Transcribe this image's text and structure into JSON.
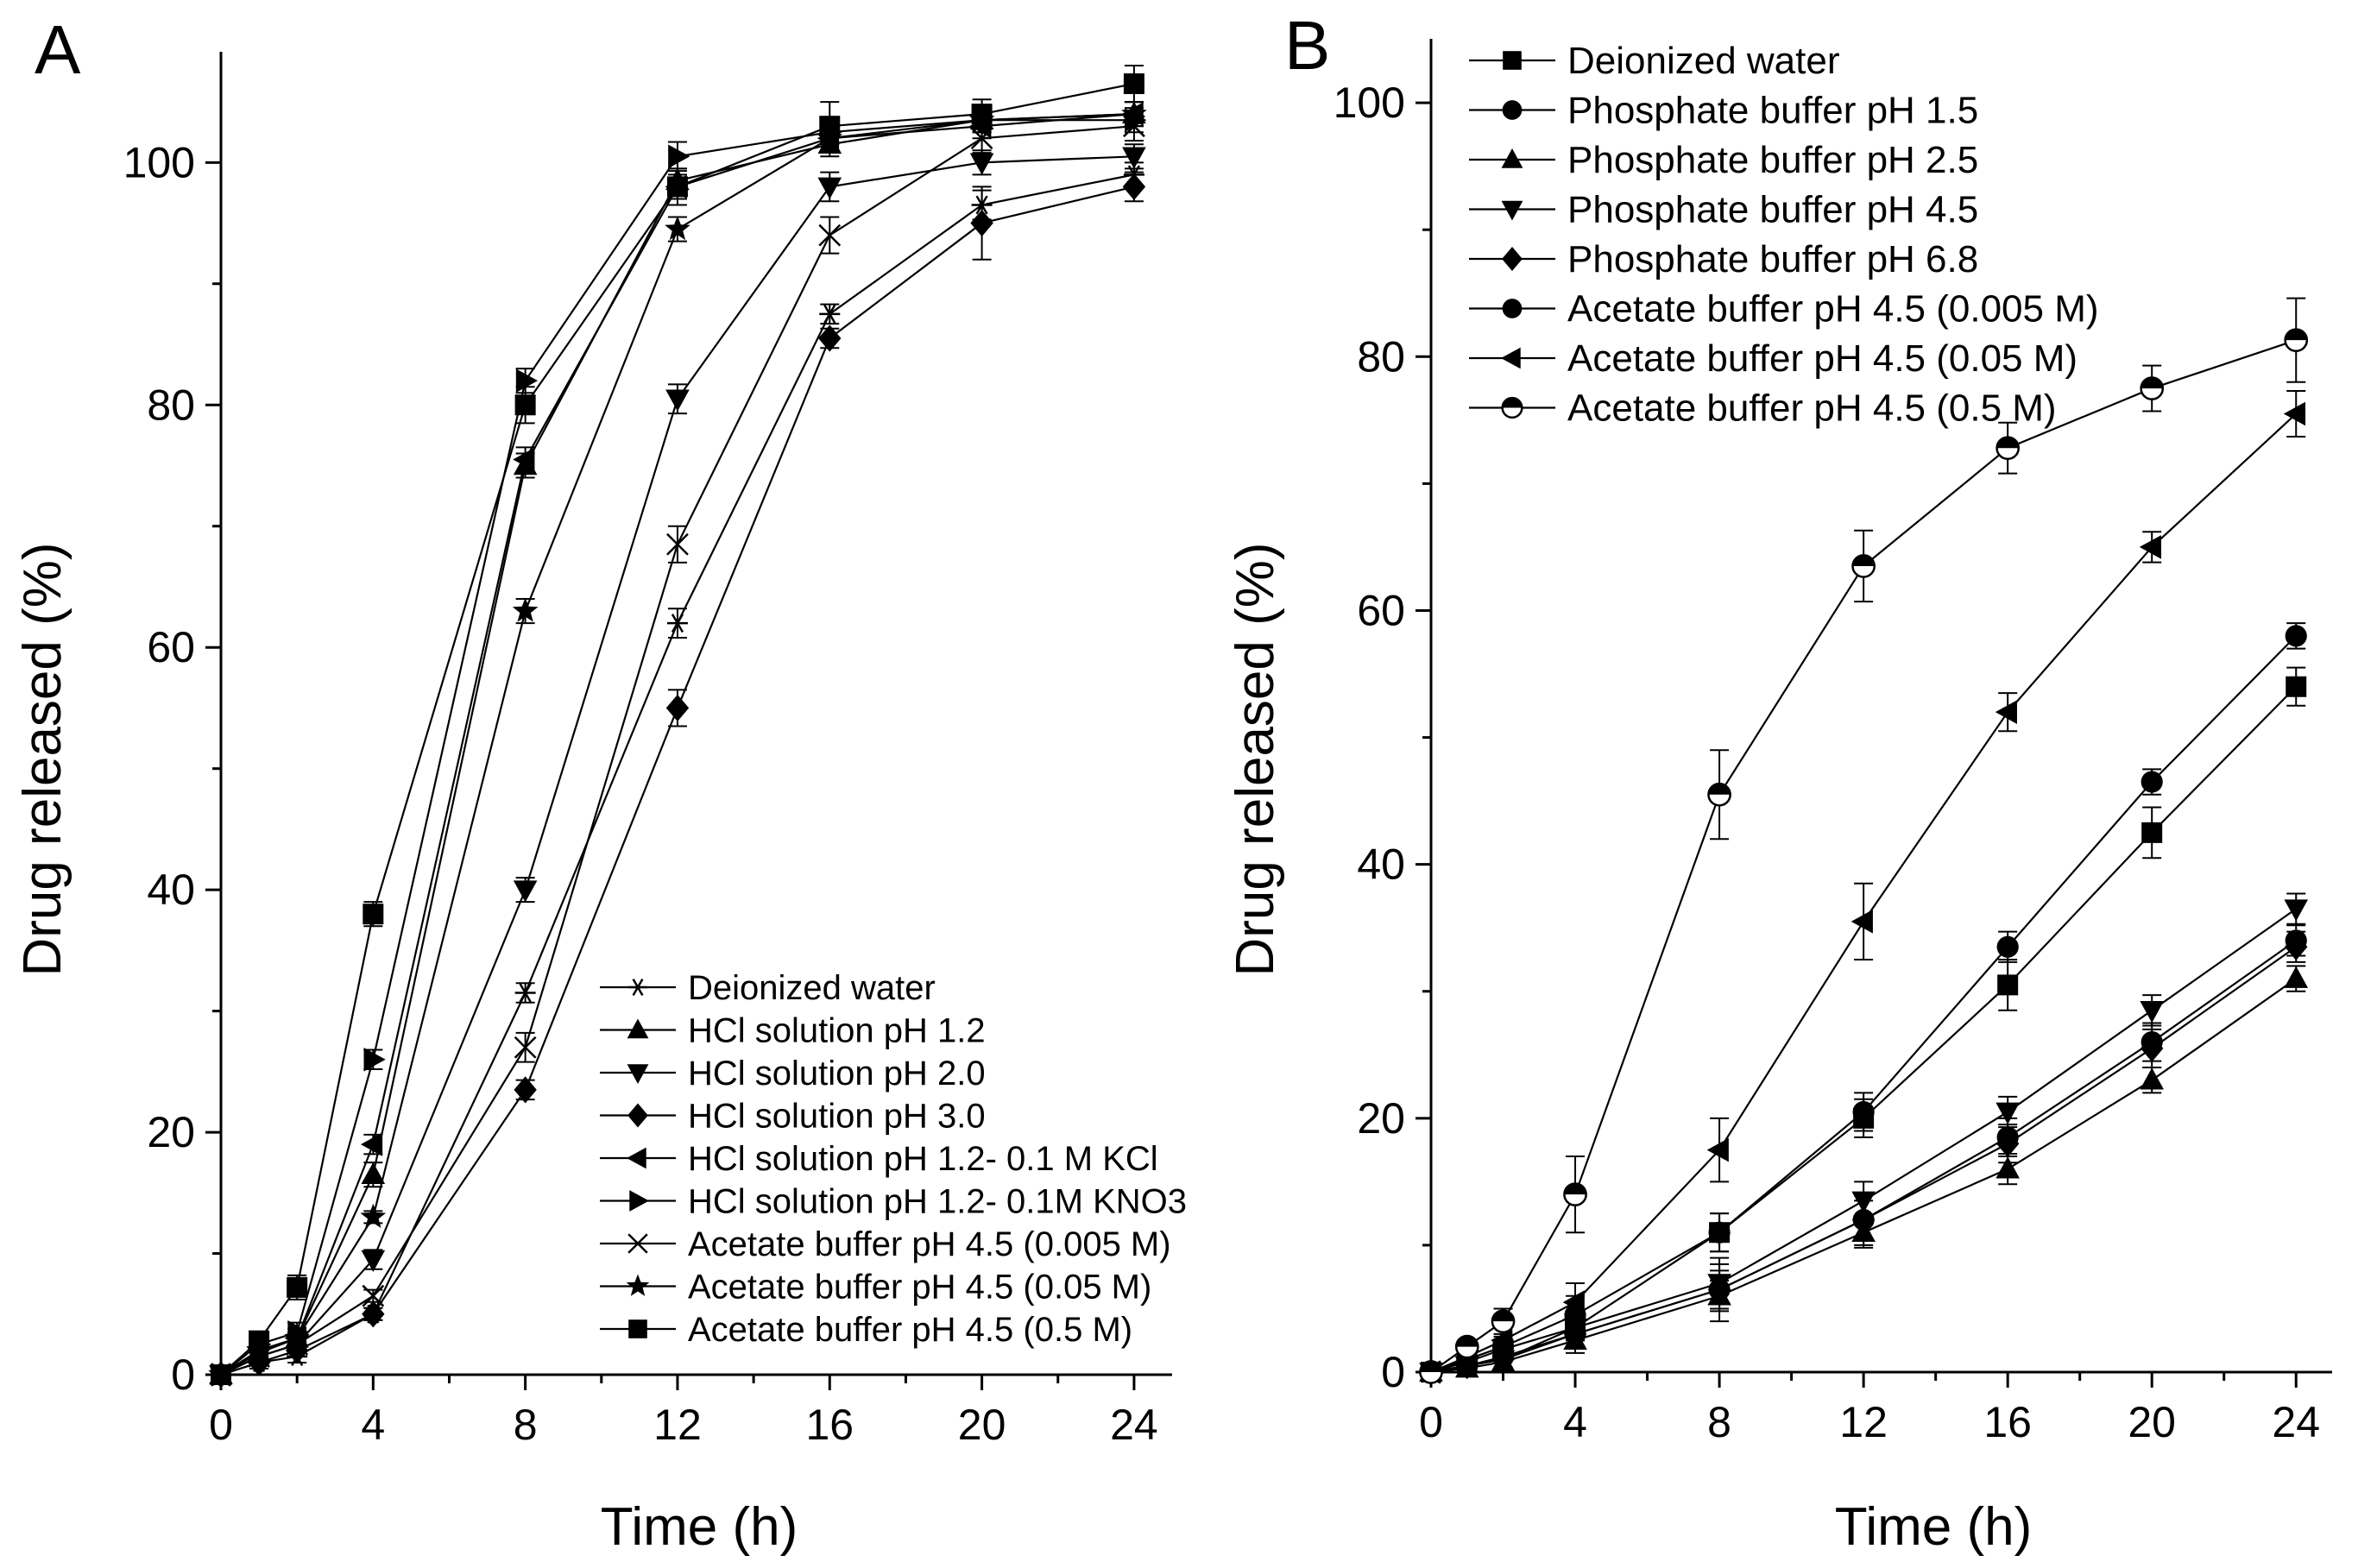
{
  "figure": {
    "panels": [
      "A",
      "B"
    ]
  },
  "chart_data": [
    {
      "id": "A",
      "type": "line",
      "panel_label": "A",
      "title": "",
      "xlabel": "Time (h)",
      "ylabel": "Drug released (%)",
      "xlim": [
        0,
        25
      ],
      "ylim": [
        0,
        107
      ],
      "xticks": [
        0,
        4,
        8,
        12,
        16,
        20,
        24
      ],
      "yticks": [
        0,
        20,
        40,
        60,
        80,
        100
      ],
      "legend_position": "bottom-right",
      "x": [
        0,
        1,
        2,
        4,
        8,
        12,
        16,
        20,
        24
      ],
      "series": [
        {
          "name": "Deionized water",
          "marker": "asterisk",
          "values": [
            0,
            1.0,
            1.5,
            5,
            31.5,
            62,
            87.5,
            96.5,
            99
          ],
          "errors": [
            0,
            0.5,
            0.5,
            0.5,
            0.8,
            1.2,
            0.8,
            1.2,
            1.0
          ]
        },
        {
          "name": "HCl solution pH 1.2",
          "marker": "triangle-up",
          "values": [
            0,
            1.8,
            3.0,
            16.5,
            75,
            98.5,
            101.5,
            103.5,
            104
          ],
          "errors": [
            0,
            0.5,
            0.8,
            1.0,
            1.0,
            1.0,
            1.0,
            1.0,
            1.0
          ]
        },
        {
          "name": "HCl solution pH 2.0",
          "marker": "triangle-down",
          "values": [
            0,
            1.5,
            2.5,
            9.5,
            40,
            80.5,
            98,
            100,
            100.5
          ],
          "errors": [
            0,
            0.5,
            0.5,
            0.8,
            1.0,
            1.2,
            1.2,
            1.0,
            1.0
          ]
        },
        {
          "name": "HCl solution pH 3.0",
          "marker": "diamond",
          "values": [
            0,
            1.0,
            2.0,
            5.0,
            23.5,
            55,
            85.5,
            95,
            98
          ],
          "errors": [
            0,
            0.5,
            0.5,
            0.5,
            0.8,
            1.5,
            0.8,
            3.0,
            1.2
          ]
        },
        {
          "name": "HCl solution pH 1.2- 0.1 M KCl",
          "marker": "triangle-left",
          "values": [
            0,
            2.0,
            3.0,
            19,
            75.5,
            98,
            102,
            103,
            104
          ],
          "errors": [
            0,
            0.5,
            0.5,
            0.8,
            1.0,
            1.0,
            1.0,
            1.0,
            1.0
          ]
        },
        {
          "name": "HCl solution pH 1.2- 0.1M KNO3",
          "marker": "triangle-right",
          "values": [
            0,
            2.5,
            3.5,
            26,
            82,
            100.5,
            102.5,
            103.5,
            103.5
          ],
          "errors": [
            0,
            0.5,
            0.8,
            0.8,
            1.0,
            1.2,
            1.0,
            1.0,
            1.0
          ]
        },
        {
          "name": "Acetate buffer pH 4.5 (0.005 M)",
          "marker": "x",
          "values": [
            0,
            1.5,
            2.5,
            6.5,
            27,
            68.5,
            94,
            102,
            103
          ],
          "errors": [
            0,
            0.5,
            0.5,
            0.5,
            1.2,
            1.5,
            1.5,
            1.2,
            1.2
          ]
        },
        {
          "name": "Acetate buffer pH 4.5 (0.05 M)",
          "marker": "star",
          "values": [
            0,
            2.0,
            3.0,
            13,
            63,
            94.5,
            102,
            103.5,
            104
          ],
          "errors": [
            0,
            0.5,
            0.5,
            0.5,
            1.0,
            1.0,
            1.0,
            1.0,
            1.0
          ]
        },
        {
          "name": "Acetate buffer pH 4.5 (0.5 M)",
          "marker": "square",
          "values": [
            0,
            2.8,
            7.2,
            38,
            80,
            98,
            103,
            104,
            106.5
          ],
          "errors": [
            0,
            0.5,
            1.0,
            1.0,
            1.5,
            1.5,
            2.0,
            1.2,
            1.5
          ]
        }
      ]
    },
    {
      "id": "B",
      "type": "line",
      "panel_label": "B",
      "title": "",
      "xlabel": "Time (h)",
      "ylabel": "Drug released (%)",
      "xlim": [
        0,
        25
      ],
      "ylim": [
        0,
        103
      ],
      "xticks": [
        0,
        4,
        8,
        12,
        16,
        20,
        24
      ],
      "yticks": [
        0,
        20,
        40,
        60,
        80,
        100
      ],
      "legend_position": "top-left",
      "x": [
        0,
        1,
        2,
        4,
        8,
        12,
        16,
        20,
        24
      ],
      "series": [
        {
          "name": "Deionized water",
          "marker": "square",
          "values": [
            0,
            0.8,
            1.8,
            3.5,
            11,
            20,
            30.5,
            42.5,
            54
          ],
          "errors": [
            0,
            0.5,
            0.8,
            1.0,
            1.5,
            1.5,
            2.0,
            2.0,
            1.5
          ]
        },
        {
          "name": "Phosphate buffer pH 1.5",
          "marker": "circle",
          "values": [
            0,
            0.5,
            1.2,
            3.0,
            6.5,
            12,
            18.5,
            26,
            34
          ],
          "errors": [
            0,
            0.5,
            0.8,
            1.0,
            1.5,
            1.5,
            1.5,
            1.5,
            1.2
          ]
        },
        {
          "name": "Phosphate buffer pH 2.5",
          "marker": "triangle-up",
          "values": [
            0,
            0.3,
            0.8,
            2.5,
            6.0,
            11,
            16,
            23,
            31
          ],
          "errors": [
            0,
            0.5,
            0.8,
            1.0,
            1.2,
            1.2,
            1.2,
            1.0,
            1.0
          ]
        },
        {
          "name": "Phosphate buffer pH 4.5",
          "marker": "triangle-down",
          "values": [
            0,
            0.5,
            1.0,
            3.5,
            7.0,
            13.5,
            20.5,
            28.5,
            36.5
          ],
          "errors": [
            0,
            0.5,
            0.8,
            1.0,
            1.5,
            1.5,
            1.2,
            1.2,
            1.2
          ]
        },
        {
          "name": "Phosphate buffer pH 6.8",
          "marker": "diamond",
          "values": [
            0,
            0.5,
            1.0,
            3.0,
            6.5,
            12,
            18,
            25.5,
            33.5
          ],
          "errors": [
            0,
            0.5,
            0.8,
            1.0,
            2.5,
            2.0,
            1.5,
            1.5,
            1.2
          ]
        },
        {
          "name": "Acetate buffer pH 4.5 (0.005 M)",
          "marker": "circle",
          "values": [
            0,
            1.0,
            2.0,
            4.5,
            11,
            20.5,
            33.5,
            46.5,
            58
          ],
          "errors": [
            0,
            0.5,
            0.8,
            1.5,
            1.5,
            1.5,
            1.2,
            1.0,
            1.0
          ]
        },
        {
          "name": "Acetate buffer pH 4.5 (0.05 M)",
          "marker": "triangle-left",
          "values": [
            0,
            1.2,
            2.5,
            5.5,
            17.5,
            35.5,
            52,
            65,
            75.5
          ],
          "errors": [
            0,
            0.5,
            1.0,
            1.5,
            2.5,
            3.0,
            1.5,
            1.2,
            1.8
          ]
        },
        {
          "name": "Acetate buffer pH 4.5 (0.5 M)",
          "marker": "half-circle",
          "values": [
            0,
            2.0,
            4.0,
            14,
            45.5,
            63.5,
            72.8,
            77.5,
            81.3
          ],
          "errors": [
            0,
            0.5,
            1.0,
            3.0,
            3.5,
            2.8,
            2.0,
            1.8,
            3.3
          ]
        }
      ]
    }
  ]
}
